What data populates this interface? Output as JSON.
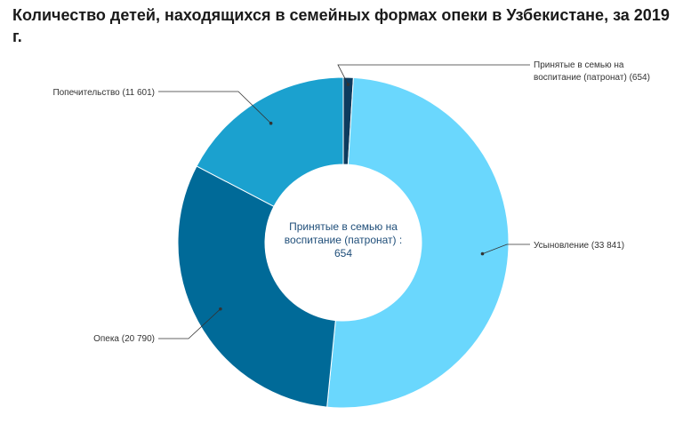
{
  "chart_data": {
    "type": "pie",
    "title": "Количество детей, находящихся в семейных формах опеки в Узбекистане, за 2019 г.",
    "categories": [
      "Принятые в семью на воспитание (патронат)",
      "Усыновление",
      "Опека",
      "Попечительство"
    ],
    "values": [
      654,
      33841,
      20790,
      11601
    ],
    "colors": [
      "#0d3b5e",
      "#6ad7fd",
      "#006a98",
      "#1ba1cf"
    ],
    "label_texts": [
      "Принятые в семью на воспитание (патронат) (654)",
      "Усыновление (33 841)",
      "Опека (20 790)",
      "Попечительство (11 601)"
    ],
    "center_label": {
      "line1": "Принятые в семью на",
      "line2": "воспитание (патронат) :",
      "line3": "654"
    },
    "legend": "none"
  }
}
